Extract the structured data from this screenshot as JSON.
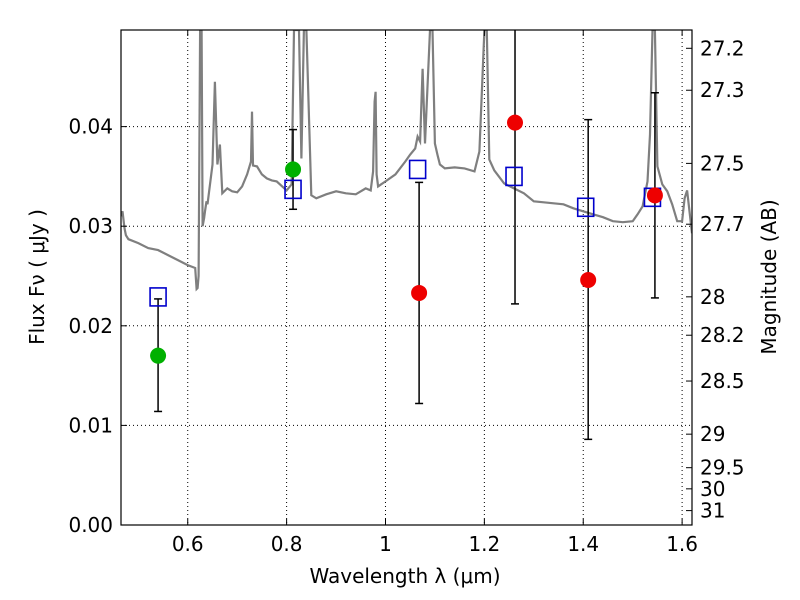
{
  "chart_data": {
    "type": "scatter",
    "title": "",
    "xlabel": "Wavelength  λ (μm)",
    "ylabel": "Flux  Fν  ( μJy )",
    "ylabel_right": "Magnitude (AB)",
    "xlim": [
      0.465,
      1.62
    ],
    "ylim": [
      0.0,
      0.0497
    ],
    "x_ticks": [
      0.6,
      0.8,
      1.0,
      1.2,
      1.4,
      1.6
    ],
    "x_tick_labels": [
      "0.6",
      "0.8",
      "1",
      "1.2",
      "1.4",
      "1.6"
    ],
    "y_ticks": [
      0.0,
      0.01,
      0.02,
      0.03,
      0.04
    ],
    "y_tick_labels": [
      "0.00",
      "0.01",
      "0.02",
      "0.03",
      "0.04"
    ],
    "right_ticks": [
      {
        "mag": 27.2,
        "label": "27.2"
      },
      {
        "mag": 27.3,
        "label": "27.3"
      },
      {
        "mag": 27.5,
        "label": "27.5"
      },
      {
        "mag": 27.7,
        "label": "27.7"
      },
      {
        "mag": 28.0,
        "label": "28"
      },
      {
        "mag": 28.2,
        "label": "28.2"
      },
      {
        "mag": 28.5,
        "label": "28.5"
      },
      {
        "mag": 29.0,
        "label": "29"
      },
      {
        "mag": 29.5,
        "label": "29.5"
      },
      {
        "mag": 30.0,
        "label": "30"
      },
      {
        "mag": 31.0,
        "label": "31"
      }
    ],
    "grid": true,
    "colors": {
      "spectrum": "#7f7f7f",
      "model": "#0000cc",
      "green": "#00b000",
      "red": "#ee0000",
      "errorbar": "#000000"
    },
    "spectrum": {
      "name": "model spectrum",
      "x": [
        0.465,
        0.468,
        0.472,
        0.475,
        0.48,
        0.5,
        0.52,
        0.54,
        0.56,
        0.58,
        0.6,
        0.615,
        0.618,
        0.62,
        0.622,
        0.625,
        0.628,
        0.63,
        0.633,
        0.635,
        0.638,
        0.64,
        0.645,
        0.65,
        0.655,
        0.66,
        0.665,
        0.67,
        0.68,
        0.69,
        0.7,
        0.71,
        0.72,
        0.728,
        0.73,
        0.732,
        0.74,
        0.75,
        0.76,
        0.77,
        0.78,
        0.8,
        0.81,
        0.815,
        0.82,
        0.825,
        0.83,
        0.835,
        0.84,
        0.85,
        0.86,
        0.88,
        0.9,
        0.92,
        0.94,
        0.96,
        0.97,
        0.975,
        0.978,
        0.98,
        0.982,
        0.985,
        1.0,
        1.02,
        1.04,
        1.05,
        1.06,
        1.065,
        1.07,
        1.075,
        1.08,
        1.09,
        1.095,
        1.1,
        1.105,
        1.11,
        1.12,
        1.14,
        1.16,
        1.18,
        1.19,
        1.2,
        1.205,
        1.21,
        1.22,
        1.24,
        1.26,
        1.28,
        1.3,
        1.32,
        1.34,
        1.36,
        1.38,
        1.4,
        1.42,
        1.44,
        1.46,
        1.48,
        1.5,
        1.51,
        1.52,
        1.53,
        1.535,
        1.54,
        1.545,
        1.55,
        1.56,
        1.57,
        1.58,
        1.59,
        1.6,
        1.605,
        1.61,
        1.62
      ],
      "y": [
        0.031,
        0.0315,
        0.0298,
        0.0291,
        0.0287,
        0.0283,
        0.0278,
        0.0276,
        0.0271,
        0.0266,
        0.0261,
        0.0258,
        0.0237,
        0.0238,
        0.025,
        0.0497,
        0.0497,
        0.03,
        0.0308,
        0.0315,
        0.0325,
        0.0322,
        0.0342,
        0.0362,
        0.0445,
        0.0362,
        0.0382,
        0.0333,
        0.0338,
        0.0335,
        0.0334,
        0.034,
        0.0352,
        0.0365,
        0.0415,
        0.0361,
        0.036,
        0.0352,
        0.0348,
        0.0346,
        0.0345,
        0.0336,
        0.0342,
        0.0497,
        0.0497,
        0.0497,
        0.0368,
        0.0497,
        0.0497,
        0.0331,
        0.0328,
        0.0332,
        0.0335,
        0.0333,
        0.0332,
        0.0338,
        0.0336,
        0.0355,
        0.0425,
        0.0435,
        0.0352,
        0.034,
        0.0345,
        0.0352,
        0.0365,
        0.0372,
        0.0378,
        0.039,
        0.0385,
        0.0458,
        0.0383,
        0.0497,
        0.0497,
        0.0383,
        0.0372,
        0.0362,
        0.0358,
        0.0359,
        0.0358,
        0.0355,
        0.0375,
        0.0497,
        0.0497,
        0.0367,
        0.0356,
        0.0343,
        0.0338,
        0.0333,
        0.0325,
        0.0324,
        0.0323,
        0.0322,
        0.0318,
        0.0315,
        0.0312,
        0.0309,
        0.0305,
        0.0304,
        0.0305,
        0.0312,
        0.032,
        0.0345,
        0.0392,
        0.0497,
        0.0497,
        0.036,
        0.0342,
        0.0335,
        0.0322,
        0.0305,
        0.0305,
        0.0328,
        0.0336,
        0.0293
      ]
    },
    "model_points": {
      "name": "model photometry",
      "x": [
        0.54,
        0.813,
        1.065,
        1.26,
        1.405,
        1.54
      ],
      "y": [
        0.0229,
        0.0337,
        0.0357,
        0.035,
        0.0319,
        0.0329
      ]
    },
    "observed_points": [
      {
        "x": 0.54,
        "y": 0.017,
        "err_low": 0.0114,
        "err_high": 0.0227,
        "color": "green"
      },
      {
        "x": 0.813,
        "y": 0.0357,
        "err_low": 0.0317,
        "err_high": 0.0397,
        "color": "green"
      },
      {
        "x": 1.068,
        "y": 0.0233,
        "err_low": 0.0122,
        "err_high": 0.0344,
        "color": "red"
      },
      {
        "x": 1.262,
        "y": 0.0404,
        "err_low": 0.0222,
        "err_high": 0.0497,
        "color": "red"
      },
      {
        "x": 1.41,
        "y": 0.0246,
        "err_low": 0.0086,
        "err_high": 0.0407,
        "color": "red"
      },
      {
        "x": 1.545,
        "y": 0.0331,
        "err_low": 0.0228,
        "err_high": 0.0434,
        "color": "red"
      }
    ]
  }
}
